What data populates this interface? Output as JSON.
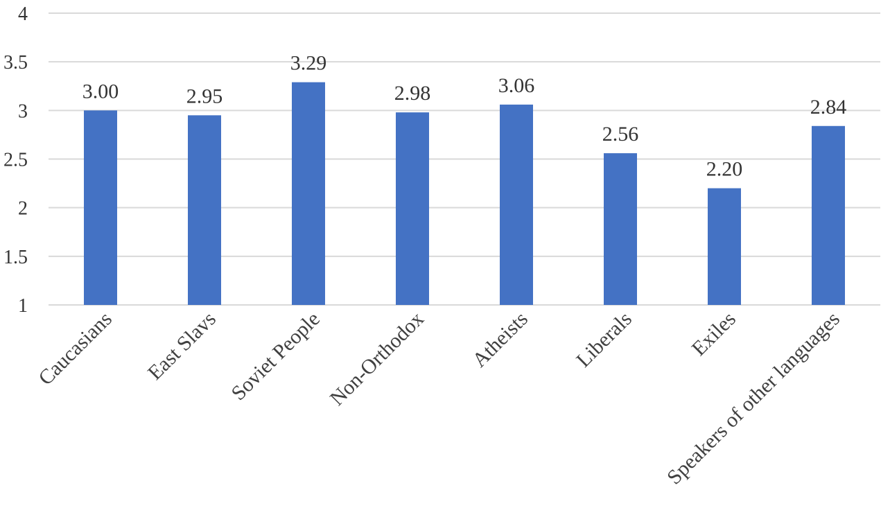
{
  "chart_data": {
    "type": "bar",
    "title": "",
    "xlabel": "",
    "ylabel": "",
    "categories": [
      "Caucasians",
      "East Slavs",
      "Soviet People",
      "Non-Orthodox",
      "Atheists",
      "Liberals",
      "Exiles",
      "Speakers of other languages"
    ],
    "values": [
      3.0,
      2.95,
      3.29,
      2.98,
      3.06,
      2.56,
      2.2,
      2.84
    ],
    "data_labels": [
      "3.00",
      "2.95",
      "3.29",
      "2.98",
      "3.06",
      "2.56",
      "2.20",
      "2.84"
    ],
    "ylim": [
      1,
      4
    ],
    "yticks": [
      "1",
      "1.5",
      "2",
      "2.5",
      "3",
      "3.5",
      "4"
    ],
    "grid": true,
    "legend": "none",
    "bar_color": "#4472C4"
  }
}
